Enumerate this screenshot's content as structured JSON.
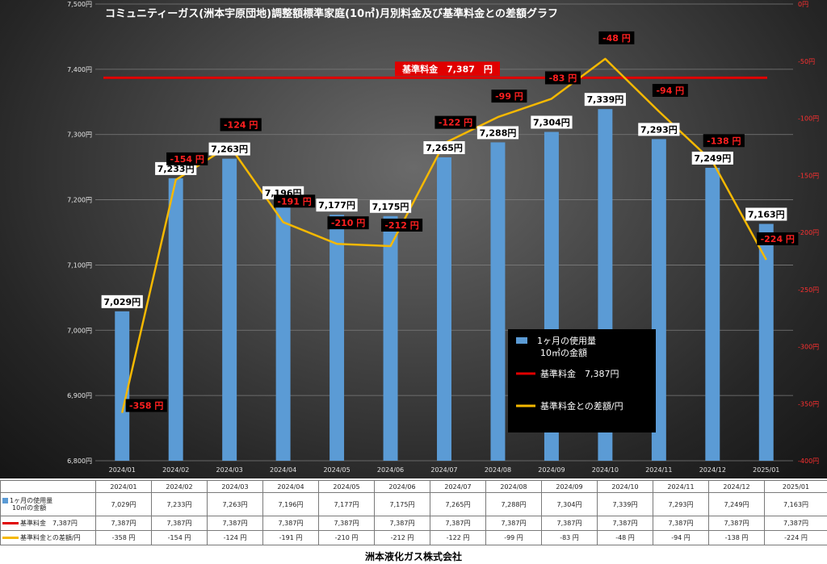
{
  "chart_data": {
    "type": "bar",
    "title": "コミュニティーガス(洲本宇原団地)調整額標準家庭(10㎥)月別料金及び基準料金との差額グラフ",
    "categories": [
      "2024/01",
      "2024/02",
      "2024/03",
      "2024/04",
      "2024/05",
      "2024/06",
      "2024/07",
      "2024/08",
      "2024/09",
      "2024/10",
      "2024/11",
      "2024/12",
      "2025/01"
    ],
    "y_left": {
      "min": 6800,
      "max": 7500,
      "step": 100,
      "tick_labels": [
        "6,800円",
        "6,900円",
        "7,000円",
        "7,100円",
        "7,200円",
        "7,300円",
        "7,400円",
        "7,500円"
      ]
    },
    "y_right": {
      "min": -400,
      "max": 0,
      "step": 50,
      "tick_labels": [
        "-400円",
        "-350円",
        "-300円",
        "-250円",
        "-200円",
        "-150円",
        "-100円",
        "-50円",
        "0円"
      ]
    },
    "grid": true,
    "legend_position": "bottom-right",
    "series": [
      {
        "name": "1ヶ月の使用量\n10㎥の金額",
        "name_line1": "1ヶ月の使用量",
        "name_line2": "10㎥の金額",
        "type": "bar",
        "axis": "left",
        "color": "#5b9bd5",
        "values": [
          7029,
          7233,
          7263,
          7196,
          7177,
          7175,
          7265,
          7288,
          7304,
          7339,
          7293,
          7249,
          7163
        ],
        "labels": [
          "7,029円",
          "7,233円",
          "7,263円",
          "7,196円",
          "7,177円",
          "7,175円",
          "7,265円",
          "7,288円",
          "7,304円",
          "7,339円",
          "7,293円",
          "7,249円",
          "7,163円"
        ],
        "table_labels": [
          "7,029円",
          "7,233円",
          "7,263円",
          "7,196円",
          "7,177円",
          "7,175円",
          "7,265円",
          "7,288円",
          "7,304円",
          "7,339円",
          "7,293円",
          "7,249円",
          "7,163円"
        ]
      },
      {
        "name": "基準料金　7,387円",
        "type": "line",
        "axis": "left",
        "color": "#e00000",
        "values": [
          7387,
          7387,
          7387,
          7387,
          7387,
          7387,
          7387,
          7387,
          7387,
          7387,
          7387,
          7387,
          7387
        ],
        "table_labels": [
          "7,387円",
          "7,387円",
          "7,387円",
          "7,387円",
          "7,387円",
          "7,387円",
          "7,387円",
          "7,387円",
          "7,387円",
          "7,387円",
          "7,387円",
          "7,387円",
          "7,387円"
        ]
      },
      {
        "name": "基準料金との差額/円",
        "type": "line",
        "axis": "right",
        "color": "#f5b800",
        "values": [
          -358,
          -154,
          -124,
          -191,
          -210,
          -212,
          -122,
          -99,
          -83,
          -48,
          -94,
          -138,
          -224
        ],
        "labels": [
          "-358 円",
          "-154 円",
          "-124 円",
          "-191 円",
          "-210 円",
          "-212 円",
          "-122 円",
          "-99 円",
          "-83 円",
          "-48 円",
          "-94 円",
          "-138 円",
          "-224 円"
        ],
        "table_labels": [
          "-358 円",
          "-154 円",
          "-124 円",
          "-191 円",
          "-210 円",
          "-212 円",
          "-122 円",
          "-99 円",
          "-83 円",
          "-48 円",
          "-94 円",
          "-138 円",
          "-224 円"
        ]
      }
    ],
    "annotations": [
      {
        "text": "基準料金　7,387　円",
        "color": "#e00000"
      }
    ]
  },
  "legend": {
    "bar_line1": "1ヶ月の使用量",
    "bar_line2": "10㎥の金額",
    "red": "基準料金　7,387円",
    "yellow": "基準料金との差額/円"
  },
  "table": {
    "rows": [
      {
        "line1": "1ヶ月の使用量",
        "line2": "10㎥の金額"
      },
      {
        "label": "基準料金　7,387円"
      },
      {
        "label": "基準料金との差額/円"
      }
    ]
  },
  "footer": "洲本液化ガス株式会社"
}
